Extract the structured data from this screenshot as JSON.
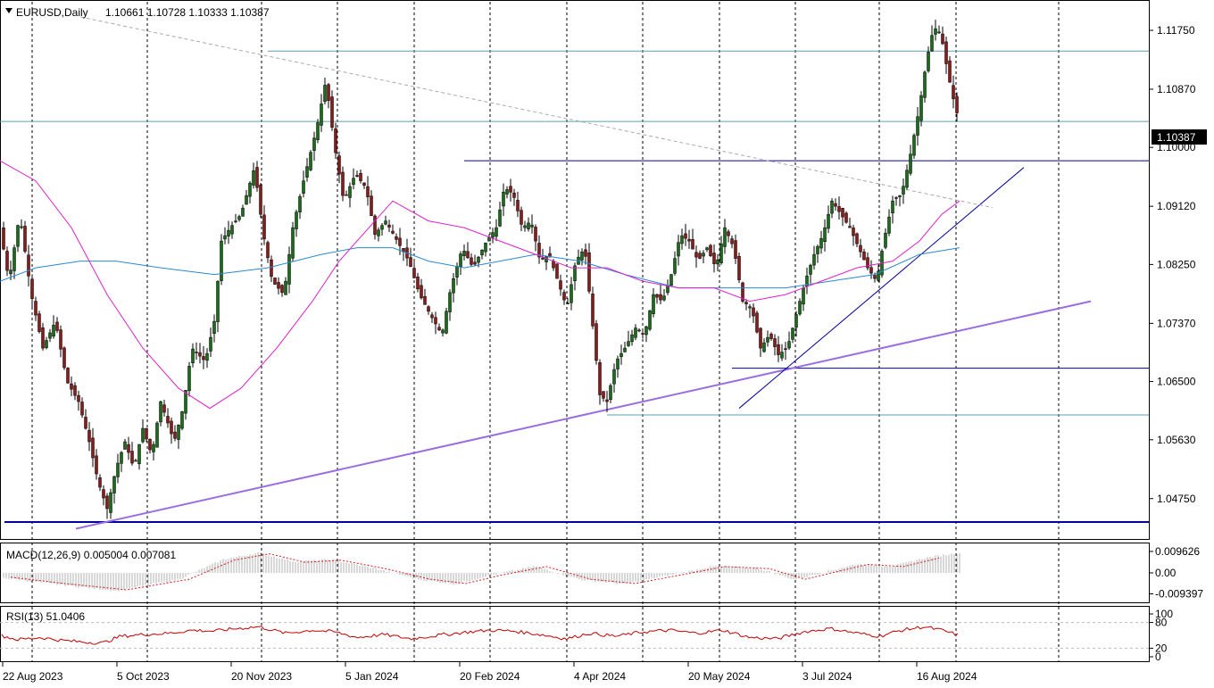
{
  "header": {
    "symbol": "EURUSD,Daily",
    "ohlc": "1.10661 1.10728 1.10333 1.10387"
  },
  "price_label": "1.10387",
  "macd_label": "MACD(12,26,9) 0.005004 0.007081",
  "rsi_label": "RSI(13) 51.0406",
  "colors": {
    "candle_up": "#1a6b1a",
    "candle_down": "#8b1a1a",
    "ma_fast": "#e020c8",
    "ma_slow": "#2a8ad0",
    "support_line": "#0000a0",
    "trend_line": "#9a6ee0",
    "hline_light": "#5aa0b0",
    "macd_signal": "#d02020",
    "rsi": "#c00000"
  },
  "chart_data": {
    "type": "candlestick",
    "price_axis": {
      "ylim": [
        1.042,
        1.1215
      ],
      "ticks": [
        "1.11750",
        "1.10870",
        "1.10000",
        "1.09120",
        "1.08250",
        "1.07370",
        "1.06500",
        "1.05630",
        "1.04750"
      ],
      "tick_values": [
        1.1175,
        1.1087,
        1.1,
        1.0912,
        1.0825,
        1.0737,
        1.065,
        1.0563,
        1.0475
      ]
    },
    "date_axis": {
      "labels": [
        "22 Aug 2023",
        "5 Oct 2023",
        "20 Nov 2023",
        "5 Jan 2024",
        "20 Feb 2024",
        "4 Apr 2024",
        "20 May 2024",
        "3 Jul 2024",
        "16 Aug 2024"
      ]
    },
    "price_path": [
      [
        0,
        1.088
      ],
      [
        10,
        1.08
      ],
      [
        22,
        1.09
      ],
      [
        35,
        1.078
      ],
      [
        48,
        1.07
      ],
      [
        62,
        1.074
      ],
      [
        75,
        1.065
      ],
      [
        88,
        1.062
      ],
      [
        100,
        1.056
      ],
      [
        110,
        1.05
      ],
      [
        120,
        1.046
      ],
      [
        130,
        1.052
      ],
      [
        140,
        1.056
      ],
      [
        150,
        1.052
      ],
      [
        160,
        1.058
      ],
      [
        170,
        1.054
      ],
      [
        180,
        1.062
      ],
      [
        195,
        1.056
      ],
      [
        205,
        1.061
      ],
      [
        215,
        1.07
      ],
      [
        230,
        1.068
      ],
      [
        240,
        1.074
      ],
      [
        248,
        1.086
      ],
      [
        258,
        1.088
      ],
      [
        270,
        1.09
      ],
      [
        285,
        1.097
      ],
      [
        295,
        1.087
      ],
      [
        305,
        1.08
      ],
      [
        318,
        1.078
      ],
      [
        328,
        1.088
      ],
      [
        340,
        1.095
      ],
      [
        355,
        1.103
      ],
      [
        365,
        1.11
      ],
      [
        375,
        1.1
      ],
      [
        385,
        1.092
      ],
      [
        398,
        1.096
      ],
      [
        410,
        1.094
      ],
      [
        420,
        1.087
      ],
      [
        432,
        1.089
      ],
      [
        445,
        1.086
      ],
      [
        458,
        1.083
      ],
      [
        470,
        1.078
      ],
      [
        482,
        1.075
      ],
      [
        495,
        1.072
      ],
      [
        505,
        1.079
      ],
      [
        518,
        1.085
      ],
      [
        530,
        1.082
      ],
      [
        545,
        1.086
      ],
      [
        556,
        1.088
      ],
      [
        565,
        1.094
      ],
      [
        575,
        1.093
      ],
      [
        585,
        1.088
      ],
      [
        595,
        1.089
      ],
      [
        605,
        1.083
      ],
      [
        615,
        1.084
      ],
      [
        625,
        1.08
      ],
      [
        635,
        1.076
      ],
      [
        645,
        1.083
      ],
      [
        655,
        1.085
      ],
      [
        665,
        1.072
      ],
      [
        672,
        1.063
      ],
      [
        680,
        1.062
      ],
      [
        690,
        1.068
      ],
      [
        700,
        1.07
      ],
      [
        712,
        1.073
      ],
      [
        722,
        1.072
      ],
      [
        732,
        1.078
      ],
      [
        742,
        1.077
      ],
      [
        752,
        1.081
      ],
      [
        762,
        1.087
      ],
      [
        772,
        1.086
      ],
      [
        782,
        1.083
      ],
      [
        792,
        1.085
      ],
      [
        802,
        1.082
      ],
      [
        812,
        1.088
      ],
      [
        822,
        1.085
      ],
      [
        832,
        1.077
      ],
      [
        842,
        1.076
      ],
      [
        852,
        1.07
      ],
      [
        862,
        1.072
      ],
      [
        872,
        1.069
      ],
      [
        882,
        1.07
      ],
      [
        892,
        1.075
      ],
      [
        902,
        1.08
      ],
      [
        912,
        1.084
      ],
      [
        922,
        1.087
      ],
      [
        932,
        1.092
      ],
      [
        942,
        1.09
      ],
      [
        952,
        1.088
      ],
      [
        962,
        1.085
      ],
      [
        972,
        1.082
      ],
      [
        982,
        1.08
      ],
      [
        990,
        1.086
      ],
      [
        1000,
        1.092
      ],
      [
        1010,
        1.093
      ],
      [
        1020,
        1.099
      ],
      [
        1030,
        1.106
      ],
      [
        1038,
        1.113
      ],
      [
        1046,
        1.118
      ],
      [
        1054,
        1.117
      ],
      [
        1062,
        1.111
      ],
      [
        1070,
        1.106
      ],
      [
        1075,
        1.1039
      ]
    ],
    "ma_fast_path": [
      [
        0,
        1.098
      ],
      [
        40,
        1.095
      ],
      [
        80,
        1.088
      ],
      [
        120,
        1.078
      ],
      [
        160,
        1.07
      ],
      [
        200,
        1.064
      ],
      [
        235,
        1.061
      ],
      [
        270,
        1.064
      ],
      [
        310,
        1.07
      ],
      [
        350,
        1.077
      ],
      [
        380,
        1.083
      ],
      [
        420,
        1.089
      ],
      [
        440,
        1.092
      ],
      [
        480,
        1.089
      ],
      [
        520,
        1.088
      ],
      [
        560,
        1.086
      ],
      [
        600,
        1.084
      ],
      [
        640,
        1.082
      ],
      [
        680,
        1.082
      ],
      [
        720,
        1.08
      ],
      [
        760,
        1.079
      ],
      [
        800,
        1.079
      ],
      [
        840,
        1.077
      ],
      [
        880,
        1.078
      ],
      [
        920,
        1.08
      ],
      [
        960,
        1.082
      ],
      [
        1000,
        1.083
      ],
      [
        1030,
        1.086
      ],
      [
        1055,
        1.09
      ],
      [
        1075,
        1.092
      ]
    ],
    "ma_slow_path": [
      [
        0,
        1.08
      ],
      [
        40,
        1.082
      ],
      [
        90,
        1.083
      ],
      [
        130,
        1.083
      ],
      [
        180,
        1.082
      ],
      [
        240,
        1.081
      ],
      [
        300,
        1.082
      ],
      [
        360,
        1.084
      ],
      [
        400,
        1.085
      ],
      [
        440,
        1.085
      ],
      [
        480,
        1.083
      ],
      [
        520,
        1.082
      ],
      [
        560,
        1.083
      ],
      [
        600,
        1.084
      ],
      [
        650,
        1.083
      ],
      [
        700,
        1.081
      ],
      [
        760,
        1.079
      ],
      [
        820,
        1.079
      ],
      [
        880,
        1.079
      ],
      [
        930,
        1.08
      ],
      [
        980,
        1.081
      ],
      [
        1030,
        1.084
      ],
      [
        1075,
        1.085
      ]
    ],
    "hlines": [
      {
        "value": 1.1144,
        "x_start": 300,
        "style": "light"
      },
      {
        "value": 1.10387,
        "x_start": 0,
        "style": "light"
      },
      {
        "value": 1.098,
        "x_start": 520,
        "style": "blue"
      },
      {
        "value": 1.067,
        "x_start": 820,
        "style": "blue"
      },
      {
        "value": 1.06,
        "x_start": 680,
        "style": "light"
      },
      {
        "value": 1.044,
        "x_start": 5,
        "style": "blue_thick"
      }
    ],
    "trendlines": [
      {
        "from": [
          85,
          1.043
        ],
        "to": [
          1222,
          1.077
        ],
        "style": "purple"
      },
      {
        "from": [
          828,
          1.061
        ],
        "to": [
          1147,
          1.097
        ],
        "style": "blue"
      },
      {
        "from": [
          90,
          1.1195
        ],
        "to": [
          1112,
          1.091
        ],
        "style": "dotted"
      }
    ],
    "macd_axis": {
      "ticks": [
        "0.009626",
        "0.00",
        "-0.009397"
      ],
      "tick_values": [
        0.009626,
        0.0,
        -0.009397
      ]
    },
    "macd_path": [
      [
        0,
        -0.002
      ],
      [
        60,
        -0.005
      ],
      [
        130,
        -0.008
      ],
      [
        200,
        -0.003
      ],
      [
        250,
        0.006
      ],
      [
        290,
        0.009
      ],
      [
        330,
        0.005
      ],
      [
        370,
        0.006
      ],
      [
        420,
        0.002
      ],
      [
        470,
        -0.003
      ],
      [
        510,
        -0.005
      ],
      [
        550,
        -0.001
      ],
      [
        600,
        0.003
      ],
      [
        650,
        -0.003
      ],
      [
        700,
        -0.005
      ],
      [
        750,
        -0.001
      ],
      [
        800,
        0.003
      ],
      [
        850,
        0.002
      ],
      [
        890,
        -0.003
      ],
      [
        930,
        0.001
      ],
      [
        960,
        0.004
      ],
      [
        1000,
        0.003
      ],
      [
        1040,
        0.007
      ],
      [
        1075,
        0.009
      ]
    ],
    "rsi_axis": {
      "ticks": [
        "100",
        "80",
        "20",
        "0"
      ],
      "tick_values": [
        100,
        80,
        20,
        0
      ]
    },
    "rsi_path": [
      [
        0,
        50
      ],
      [
        20,
        40
      ],
      [
        45,
        45
      ],
      [
        70,
        38
      ],
      [
        90,
        35
      ],
      [
        115,
        32
      ],
      [
        135,
        48
      ],
      [
        160,
        52
      ],
      [
        190,
        55
      ],
      [
        215,
        62
      ],
      [
        240,
        60
      ],
      [
        265,
        66
      ],
      [
        290,
        70
      ],
      [
        320,
        55
      ],
      [
        350,
        62
      ],
      [
        375,
        58
      ],
      [
        400,
        45
      ],
      [
        430,
        52
      ],
      [
        460,
        42
      ],
      [
        490,
        50
      ],
      [
        520,
        57
      ],
      [
        550,
        62
      ],
      [
        575,
        60
      ],
      [
        605,
        52
      ],
      [
        635,
        42
      ],
      [
        660,
        55
      ],
      [
        690,
        48
      ],
      [
        720,
        58
      ],
      [
        750,
        62
      ],
      [
        780,
        55
      ],
      [
        810,
        62
      ],
      [
        840,
        45
      ],
      [
        870,
        42
      ],
      [
        900,
        58
      ],
      [
        930,
        66
      ],
      [
        960,
        55
      ],
      [
        985,
        48
      ],
      [
        1010,
        62
      ],
      [
        1035,
        70
      ],
      [
        1055,
        62
      ],
      [
        1075,
        50
      ]
    ]
  }
}
